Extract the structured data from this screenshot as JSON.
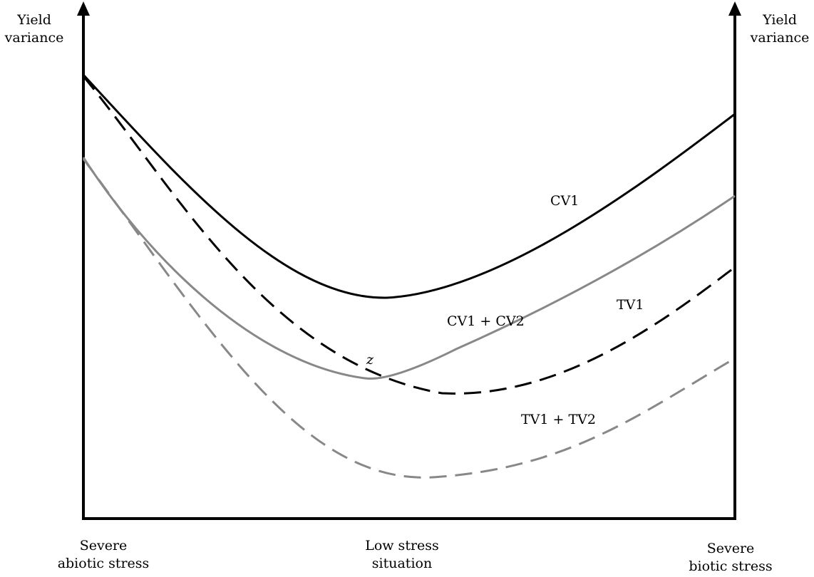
{
  "y_axis_left": {
    "line1": "Yield",
    "line2": "variance"
  },
  "y_axis_right": {
    "line1": "Yield",
    "line2": "variance"
  },
  "x_axis": {
    "left": {
      "line1": "Severe",
      "line2": "abiotic stress"
    },
    "middle": {
      "line1": "Low stress",
      "line2": "situation"
    },
    "right": {
      "line1": "Severe",
      "line2": "biotic stress"
    }
  },
  "curves": {
    "cv1": {
      "label": "CV1",
      "color": "#000000",
      "style": "solid"
    },
    "cv1_cv2": {
      "label": "CV1 + CV2",
      "color": "#888888",
      "style": "solid"
    },
    "tv1": {
      "label": "TV1",
      "color": "#000000",
      "style": "dashed"
    },
    "tv1_tv2": {
      "label": "TV1 + TV2",
      "color": "#888888",
      "style": "dashed"
    }
  },
  "intersection_label": "z"
}
